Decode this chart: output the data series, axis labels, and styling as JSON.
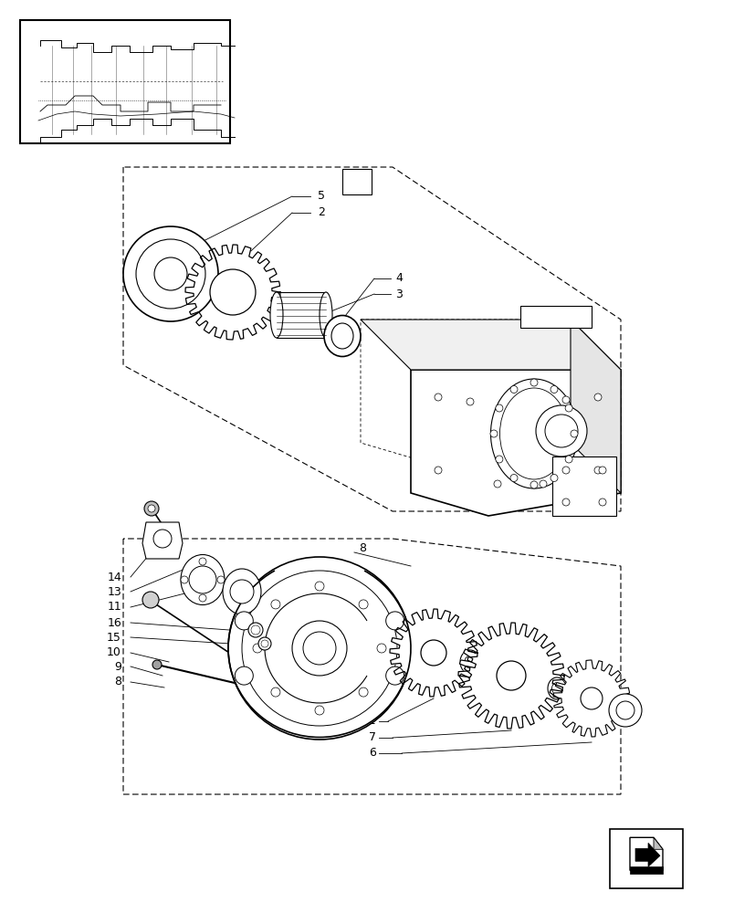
{
  "bg_color": "#ffffff",
  "line_color": "#000000",
  "fig_w": 8.28,
  "fig_h": 10.0,
  "dpi": 100
}
